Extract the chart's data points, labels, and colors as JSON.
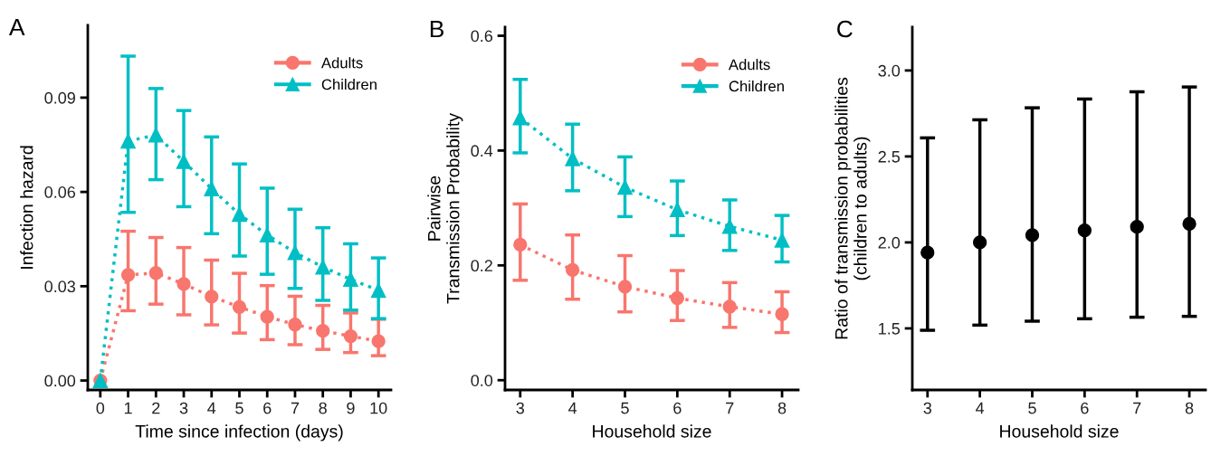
{
  "chart_data": [
    {
      "type": "line",
      "title": "A",
      "xlabel": "Time since infection (days)",
      "ylabel": "Infection hazard",
      "x": [
        0,
        1,
        2,
        3,
        4,
        5,
        6,
        7,
        8,
        9,
        10
      ],
      "xlim": [
        -0.45,
        10.45
      ],
      "xticks": [
        0,
        1,
        2,
        3,
        4,
        5,
        6,
        7,
        8,
        9,
        10
      ],
      "ylim": [
        -0.003,
        0.113
      ],
      "yticks": [
        {
          "value": 0,
          "label": "0.00"
        },
        {
          "value": 0.03,
          "label": "0.03"
        },
        {
          "value": 0.06,
          "label": "0.06"
        },
        {
          "value": 0.09,
          "label": "0.09"
        }
      ],
      "grid": false,
      "legend": "top right",
      "line_style": "dotted",
      "series": [
        {
          "name": "Adults",
          "color": "#f8766d",
          "marker": "circle",
          "values": [
            0,
            0.0336,
            0.0342,
            0.0307,
            0.0267,
            0.0234,
            0.0203,
            0.0178,
            0.0158,
            0.0141,
            0.0125
          ],
          "errors": [
            null,
            [
              0.0222,
              0.0475
            ],
            [
              0.0243,
              0.0455
            ],
            [
              0.0209,
              0.0423
            ],
            [
              0.0177,
              0.0383
            ],
            [
              0.0151,
              0.0341
            ],
            [
              0.013,
              0.0302
            ],
            [
              0.0114,
              0.0268
            ],
            [
              0.0099,
              0.0239
            ],
            [
              0.0089,
              0.0215
            ],
            [
              0.0079,
              0.0195
            ]
          ]
        },
        {
          "name": "Children",
          "color": "#00bfc4",
          "marker": "triangle",
          "values": [
            0,
            0.0762,
            0.0781,
            0.0697,
            0.061,
            0.0529,
            0.0463,
            0.0407,
            0.0361,
            0.0322,
            0.0287
          ],
          "errors": [
            null,
            [
              0.0535,
              0.1032
            ],
            [
              0.0639,
              0.0929
            ],
            [
              0.0553,
              0.0859
            ],
            [
              0.0467,
              0.0775
            ],
            [
              0.0396,
              0.0689
            ],
            [
              0.0338,
              0.0612
            ],
            [
              0.0293,
              0.0545
            ],
            [
              0.0255,
              0.0486
            ],
            [
              0.0224,
              0.0435
            ],
            [
              0.0197,
              0.039
            ]
          ]
        }
      ]
    },
    {
      "type": "line",
      "title": "B",
      "xlabel": "Household size",
      "ylabel": "Pairwise\nTransmission Probability",
      "x": [
        3,
        4,
        5,
        6,
        7,
        8
      ],
      "xlim": [
        2.71,
        8.31
      ],
      "xticks": [
        3,
        4,
        5,
        6,
        7,
        8
      ],
      "ylim": [
        -0.017,
        0.615
      ],
      "yticks": [
        {
          "value": 0,
          "label": "0.0"
        },
        0.2,
        0.4,
        0.6
      ],
      "grid": false,
      "legend": "top right",
      "line_style": "dotted",
      "series": [
        {
          "name": "Adults",
          "color": "#f8766d",
          "marker": "circle",
          "values": [
            0.236,
            0.192,
            0.163,
            0.143,
            0.128,
            0.115
          ],
          "errors": [
            [
              0.174,
              0.307
            ],
            [
              0.141,
              0.253
            ],
            [
              0.119,
              0.217
            ],
            [
              0.104,
              0.191
            ],
            [
              0.092,
              0.17
            ],
            [
              0.083,
              0.154
            ]
          ]
        },
        {
          "name": "Children",
          "color": "#00bfc4",
          "marker": "triangle",
          "values": [
            0.457,
            0.386,
            0.336,
            0.297,
            0.268,
            0.244
          ],
          "errors": [
            [
              0.396,
              0.524
            ],
            [
              0.33,
              0.446
            ],
            [
              0.285,
              0.389
            ],
            [
              0.252,
              0.347
            ],
            [
              0.226,
              0.314
            ],
            [
              0.206,
              0.287
            ]
          ]
        }
      ]
    },
    {
      "type": "scatter",
      "title": "C",
      "xlabel": "Household size",
      "ylabel": "Ratio of transmission probabilities\n(children to adults)",
      "x": [
        3,
        4,
        5,
        6,
        7,
        8
      ],
      "xlim": [
        2.71,
        8.31
      ],
      "xticks": [
        3,
        4,
        5,
        6,
        7,
        8
      ],
      "ylim": [
        1.142,
        3.252
      ],
      "yticks": [
        1.5,
        {
          "value": 2,
          "label": "2.0"
        },
        2.5,
        {
          "value": 3,
          "label": "3.0"
        }
      ],
      "grid": false,
      "marker": "circle",
      "series": [
        {
          "color": "#000000",
          "values": [
            1.941,
            2.0,
            2.042,
            2.07,
            2.091,
            2.108
          ],
          "errors": [
            [
              1.489,
              2.608
            ],
            [
              1.519,
              2.713
            ],
            [
              1.542,
              2.783
            ],
            [
              1.556,
              2.834
            ],
            [
              1.565,
              2.876
            ],
            [
              1.57,
              2.904
            ]
          ]
        }
      ]
    }
  ]
}
